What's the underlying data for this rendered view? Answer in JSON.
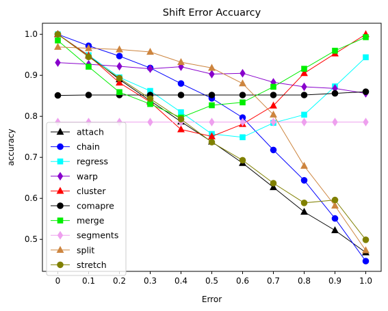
{
  "chart_data": {
    "type": "line",
    "title": "Shift Error Accuarcy",
    "xlabel": "Error",
    "ylabel": "accuracy",
    "x": [
      0,
      0.1,
      0.2,
      0.3,
      0.4,
      0.5,
      0.6,
      0.7,
      0.8,
      0.9,
      1.0
    ],
    "x_tick_labels": [
      "0",
      "0.1",
      "0.2",
      "0.3",
      "0.4",
      "0.5",
      "0.6",
      "0.7",
      "0.8",
      "0.9",
      "1.0"
    ],
    "y_ticks": [
      0.5,
      0.6,
      0.7,
      0.8,
      0.9,
      1.0
    ],
    "y_tick_labels": [
      "0.5",
      "0.6",
      "0.7",
      "0.8",
      "0.9",
      "1.0"
    ],
    "xlim": [
      -0.05,
      1.05
    ],
    "ylim": [
      0.422,
      1.027
    ],
    "grid": false,
    "legend_position": "lower-left",
    "series": [
      {
        "name": "attach",
        "color": "#000000",
        "marker": "triangle",
        "values": [
          1.0,
          0.948,
          0.89,
          0.838,
          0.787,
          0.738,
          0.686,
          0.627,
          0.567,
          0.522,
          0.468
        ]
      },
      {
        "name": "chain",
        "color": "#0000ff",
        "marker": "circle",
        "values": [
          1.0,
          0.972,
          0.947,
          0.918,
          0.88,
          0.844,
          0.797,
          0.718,
          0.644,
          0.551,
          0.447
        ]
      },
      {
        "name": "regress",
        "color": "#00ffff",
        "marker": "square",
        "values": [
          1.0,
          0.949,
          0.895,
          0.862,
          0.81,
          0.757,
          0.749,
          0.784,
          0.804,
          0.873,
          0.944
        ]
      },
      {
        "name": "warp",
        "color": "#8800cc",
        "marker": "diamond",
        "values": [
          0.931,
          0.927,
          0.922,
          0.916,
          0.921,
          0.903,
          0.905,
          0.883,
          0.872,
          0.868,
          0.856
        ]
      },
      {
        "name": "cluster",
        "color": "#ff0000",
        "marker": "triangle",
        "values": [
          1.0,
          0.948,
          0.882,
          0.835,
          0.768,
          0.751,
          0.781,
          0.826,
          0.905,
          0.953,
          1.0
        ]
      },
      {
        "name": "comapre",
        "color": "#000000",
        "marker": "circle",
        "values": [
          0.851,
          0.852,
          0.852,
          0.852,
          0.852,
          0.852,
          0.852,
          0.852,
          0.852,
          0.856,
          0.86
        ]
      },
      {
        "name": "merge",
        "color": "#00ee00",
        "marker": "square",
        "values": [
          0.985,
          0.921,
          0.859,
          0.83,
          0.797,
          0.827,
          0.834,
          0.872,
          0.916,
          0.96,
          0.993
        ]
      },
      {
        "name": "segments",
        "color": "#eea0ee",
        "marker": "diamond",
        "values": [
          0.786,
          0.786,
          0.786,
          0.786,
          0.786,
          0.786,
          0.786,
          0.786,
          0.786,
          0.786,
          0.786
        ]
      },
      {
        "name": "split",
        "color": "#cd853f",
        "marker": "triangle",
        "values": [
          0.969,
          0.966,
          0.963,
          0.957,
          0.932,
          0.918,
          0.88,
          0.804,
          0.679,
          0.582,
          0.473
        ]
      },
      {
        "name": "stretch",
        "color": "#808000",
        "marker": "circle",
        "values": [
          1.0,
          0.945,
          0.893,
          0.843,
          0.793,
          0.737,
          0.693,
          0.637,
          0.589,
          0.596,
          0.499
        ]
      }
    ]
  }
}
